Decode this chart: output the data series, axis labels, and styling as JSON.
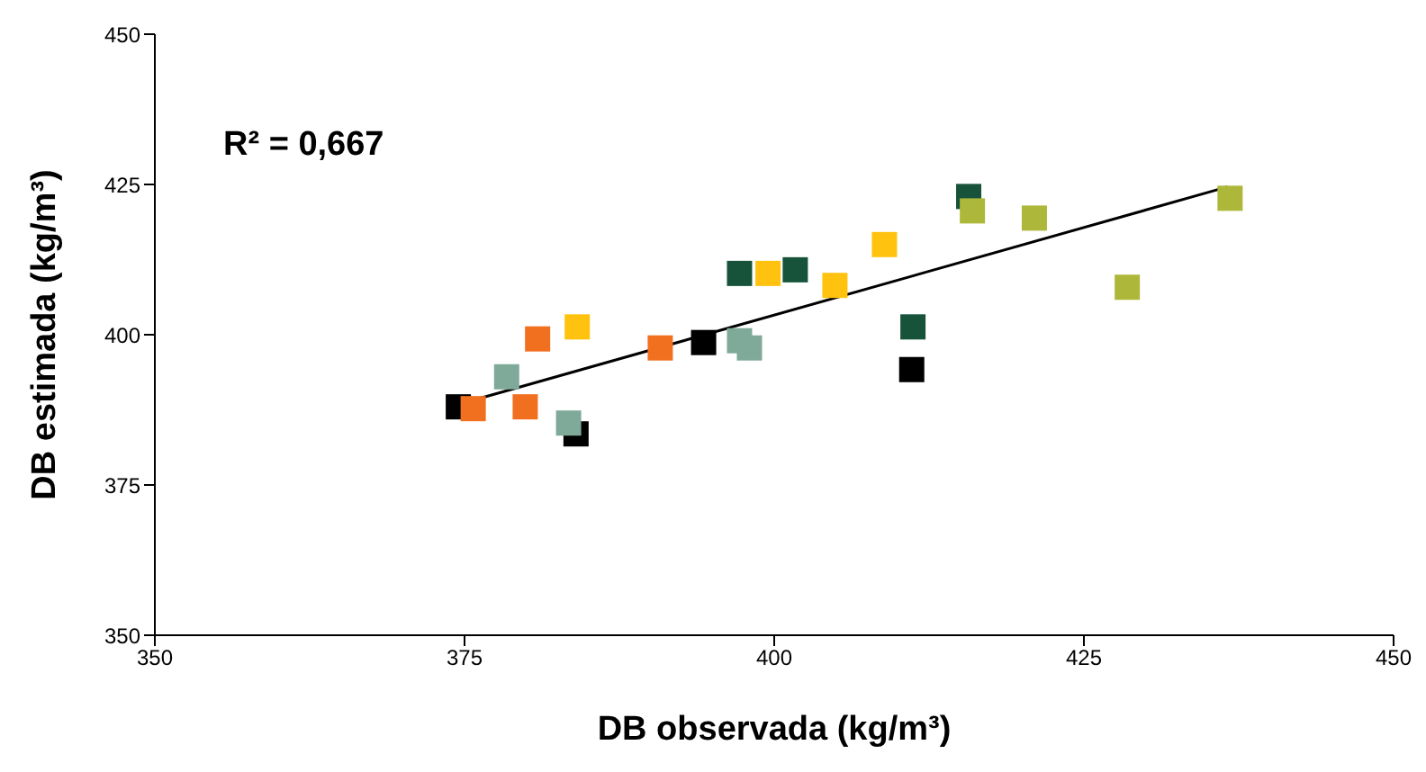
{
  "chart_data": {
    "type": "scatter",
    "xlabel": "DB observada (kg/m³)",
    "ylabel": "DB estimada (kg/m³)",
    "annotations": [
      "R² = 0,667"
    ],
    "xlim": [
      350,
      450
    ],
    "xticks": [
      350,
      375,
      400,
      425,
      450
    ],
    "ylim": [
      350,
      450
    ],
    "yticks": [
      350,
      375,
      400,
      425,
      450
    ],
    "grid": false,
    "legend": false,
    "marker": "square",
    "series": [
      {
        "color": "#000000",
        "x": [
          374.5,
          394.3,
          384.0,
          411.1
        ],
        "values": [
          388.0,
          398.7,
          383.5,
          394.2
        ]
      },
      {
        "color": "#f07020",
        "x": [
          375.7,
          380.9,
          379.9,
          390.8
        ],
        "values": [
          387.7,
          399.3,
          388.0,
          397.8
        ]
      },
      {
        "color": "#7faa9a",
        "x": [
          378.4,
          383.4,
          397.2,
          398.0
        ],
        "values": [
          393.0,
          385.3,
          399.0,
          397.8
        ]
      },
      {
        "color": "#ffc20e",
        "x": [
          384.1,
          399.5,
          404.9,
          408.9
        ],
        "values": [
          401.3,
          410.2,
          408.2,
          415.0
        ]
      },
      {
        "color": "#17533a",
        "x": [
          397.2,
          401.7,
          415.7,
          411.2
        ],
        "values": [
          410.2,
          410.8,
          423.0,
          401.3
        ]
      },
      {
        "color": "#adb83a",
        "x": [
          416.0,
          421.0,
          428.5,
          436.8
        ],
        "values": [
          420.6,
          419.4,
          407.9,
          422.7
        ]
      },
      {
        "type": "line",
        "color": "#000000",
        "marker": "none",
        "line_style": "solid",
        "x": [
          375.0,
          436.6
        ],
        "values": [
          388.7,
          424.6
        ]
      }
    ]
  }
}
